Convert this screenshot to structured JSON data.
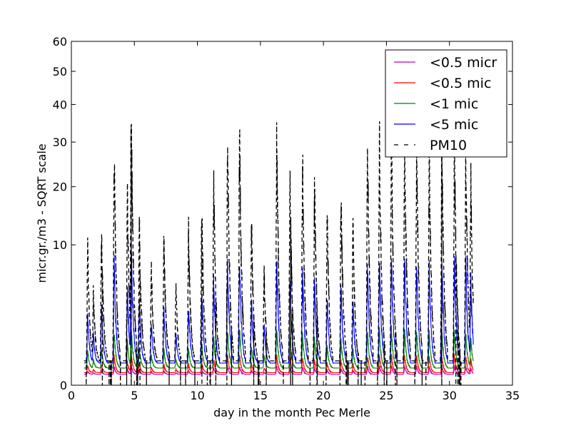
{
  "chart_data": {
    "type": "line",
    "xlabel": "day in the month Pec Merle",
    "ylabel": "micr.gr./m3 - SQRT scale",
    "y_scale": "sqrt",
    "xlim": [
      0,
      35
    ],
    "ylim": [
      0,
      60
    ],
    "x_ticks": [
      0,
      5,
      10,
      15,
      20,
      25,
      30,
      35
    ],
    "y_ticks": [
      0,
      10,
      20,
      30,
      40,
      50,
      60
    ],
    "grid": false,
    "legend_position": "top-right",
    "series": [
      {
        "name": "<0.5 micr",
        "color": "#bf00bf",
        "dash": "solid",
        "base": 0.06,
        "peak_ratio": 0.004
      },
      {
        "name": "<0.5 mic",
        "color": "#ff0000",
        "dash": "solid",
        "base": 0.08,
        "peak_ratio": 0.012
      },
      {
        "name": "<1 mic",
        "color": "#008000",
        "dash": "solid",
        "base": 0.15,
        "peak_ratio": 0.045
      },
      {
        "name": "<5 mic",
        "color": "#0000ff",
        "dash": "solid",
        "base": 0.25,
        "peak_ratio": 0.25
      },
      {
        "name": "PM10",
        "color": "#000000",
        "dash": "dashed",
        "base": 0.3,
        "peak_ratio": 1.0
      }
    ],
    "daily_peaks": {
      "days": [
        1.3,
        1.75,
        2.4,
        3.4,
        4.45,
        4.75,
        5.4,
        6.35,
        7.35,
        8.3,
        9.3,
        10.35,
        11.3,
        12.4,
        13.35,
        14.3,
        15.3,
        16.3,
        17.35,
        18.35,
        19.3,
        20.3,
        21.4,
        22.35,
        23.5,
        24.45,
        25.4,
        26.45,
        27.4,
        28.4,
        29.4,
        30.4,
        31.3,
        31.7
      ],
      "pm10_values": [
        9,
        4,
        10.5,
        27,
        17,
        38,
        12.5,
        6.5,
        10.5,
        4.5,
        11.5,
        15.5,
        20.5,
        29,
        30,
        12.5,
        6,
        29,
        21.5,
        24,
        20,
        14,
        18.5,
        12,
        28.5,
        29,
        30,
        29,
        28,
        25.5,
        29,
        29,
        27,
        20
      ]
    }
  }
}
